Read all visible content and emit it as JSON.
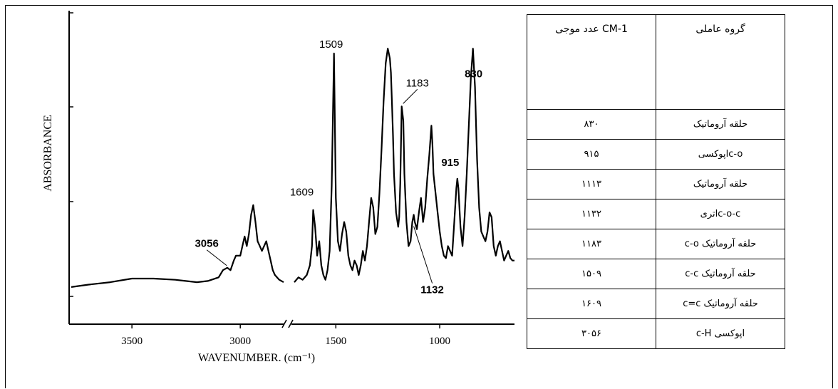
{
  "chart_data": {
    "type": "line",
    "xlabel": "WAVENUMBER. (cm⁻¹)",
    "ylabel": "ABSORBANCE",
    "x_ticks": [
      3500,
      3000,
      1500,
      1000
    ],
    "x_break": [
      2800,
      1700
    ],
    "segments": [
      {
        "xrange": [
          3780,
          2800
        ],
        "x": [
          3780,
          3700,
          3600,
          3500,
          3400,
          3300,
          3200,
          3150,
          3100,
          3080,
          3060,
          3045,
          3030,
          3020,
          3000,
          2990,
          2980,
          2970,
          2960,
          2950,
          2940,
          2930,
          2920,
          2910,
          2900,
          2890,
          2880,
          2870,
          2860,
          2850,
          2840,
          2820,
          2800
        ],
        "y": [
          0.03,
          0.04,
          0.05,
          0.065,
          0.065,
          0.06,
          0.05,
          0.055,
          0.07,
          0.1,
          0.11,
          0.1,
          0.14,
          0.16,
          0.16,
          0.2,
          0.24,
          0.2,
          0.25,
          0.33,
          0.37,
          0.3,
          0.22,
          0.2,
          0.18,
          0.2,
          0.22,
          0.18,
          0.14,
          0.1,
          0.08,
          0.06,
          0.05
        ]
      },
      {
        "xrange": [
          1700,
          640
        ],
        "x": [
          1700,
          1680,
          1660,
          1640,
          1625,
          1615,
          1609,
          1600,
          1590,
          1580,
          1570,
          1560,
          1550,
          1540,
          1530,
          1520,
          1509,
          1500,
          1490,
          1480,
          1470,
          1460,
          1450,
          1440,
          1430,
          1420,
          1410,
          1400,
          1390,
          1380,
          1370,
          1360,
          1350,
          1340,
          1330,
          1320,
          1310,
          1300,
          1290,
          1280,
          1270,
          1260,
          1250,
          1240,
          1235,
          1230,
          1225,
          1220,
          1210,
          1200,
          1195,
          1190,
          1183,
          1175,
          1170,
          1160,
          1150,
          1140,
          1132,
          1125,
          1120,
          1110,
          1100,
          1090,
          1080,
          1070,
          1060,
          1050,
          1040,
          1035,
          1030,
          1020,
          1010,
          1000,
          990,
          980,
          970,
          960,
          950,
          940,
          930,
          920,
          915,
          910,
          900,
          890,
          880,
          870,
          860,
          850,
          840,
          830,
          825,
          820,
          810,
          800,
          790,
          780,
          770,
          760,
          750,
          740,
          730,
          720,
          710,
          700,
          690,
          680,
          670,
          660,
          650,
          640
        ],
        "y": [
          0.05,
          0.07,
          0.06,
          0.08,
          0.12,
          0.2,
          0.35,
          0.28,
          0.16,
          0.22,
          0.12,
          0.08,
          0.06,
          0.1,
          0.18,
          0.45,
          1.0,
          0.4,
          0.22,
          0.18,
          0.25,
          0.3,
          0.26,
          0.16,
          0.12,
          0.1,
          0.14,
          0.12,
          0.08,
          0.12,
          0.18,
          0.14,
          0.2,
          0.3,
          0.4,
          0.36,
          0.25,
          0.28,
          0.42,
          0.6,
          0.8,
          0.96,
          1.02,
          0.98,
          0.92,
          0.8,
          0.66,
          0.5,
          0.34,
          0.28,
          0.32,
          0.46,
          0.78,
          0.72,
          0.5,
          0.3,
          0.2,
          0.22,
          0.3,
          0.33,
          0.3,
          0.27,
          0.34,
          0.4,
          0.3,
          0.36,
          0.48,
          0.58,
          0.7,
          0.62,
          0.5,
          0.42,
          0.34,
          0.26,
          0.2,
          0.16,
          0.15,
          0.2,
          0.18,
          0.16,
          0.3,
          0.44,
          0.48,
          0.44,
          0.28,
          0.2,
          0.32,
          0.5,
          0.7,
          0.9,
          1.02,
          0.86,
          0.7,
          0.56,
          0.36,
          0.26,
          0.24,
          0.22,
          0.26,
          0.34,
          0.32,
          0.2,
          0.16,
          0.2,
          0.22,
          0.18,
          0.14,
          0.16,
          0.18,
          0.15,
          0.14,
          0.14
        ]
      }
    ],
    "annotations": [
      {
        "label": "1509",
        "x": 1509,
        "bold": false
      },
      {
        "label": "830",
        "x": 830,
        "bold": true
      },
      {
        "label": "1183",
        "x": 1183,
        "bold": false
      },
      {
        "label": "1609",
        "x": 1609,
        "bold": false
      },
      {
        "label": "915",
        "x": 915,
        "bold": true
      },
      {
        "label": "3056",
        "x": 3056,
        "bold": true
      },
      {
        "label": "1132",
        "x": 1132,
        "bold": true
      }
    ]
  },
  "table": {
    "headers": [
      "گروه عاملی",
      "CM-1 عدد موجی"
    ],
    "rows": [
      [
        "حلقه آروماتیک",
        "۸۳۰"
      ],
      [
        "c-oاپوکسی",
        "۹۱۵"
      ],
      [
        "حلقه آروماتیک",
        "۱۱۱۳"
      ],
      [
        "c-o-cاتری",
        "۱۱۳۲"
      ],
      [
        "حلقه آروماتیک c-o",
        "۱۱۸۳"
      ],
      [
        "حلقه آروماتیک c-c",
        "۱۵۰۹"
      ],
      [
        "حلقه آروماتیک c=c",
        "۱۶۰۹"
      ],
      [
        "اپوکسی c-H",
        "۳۰۵۶"
      ]
    ]
  }
}
